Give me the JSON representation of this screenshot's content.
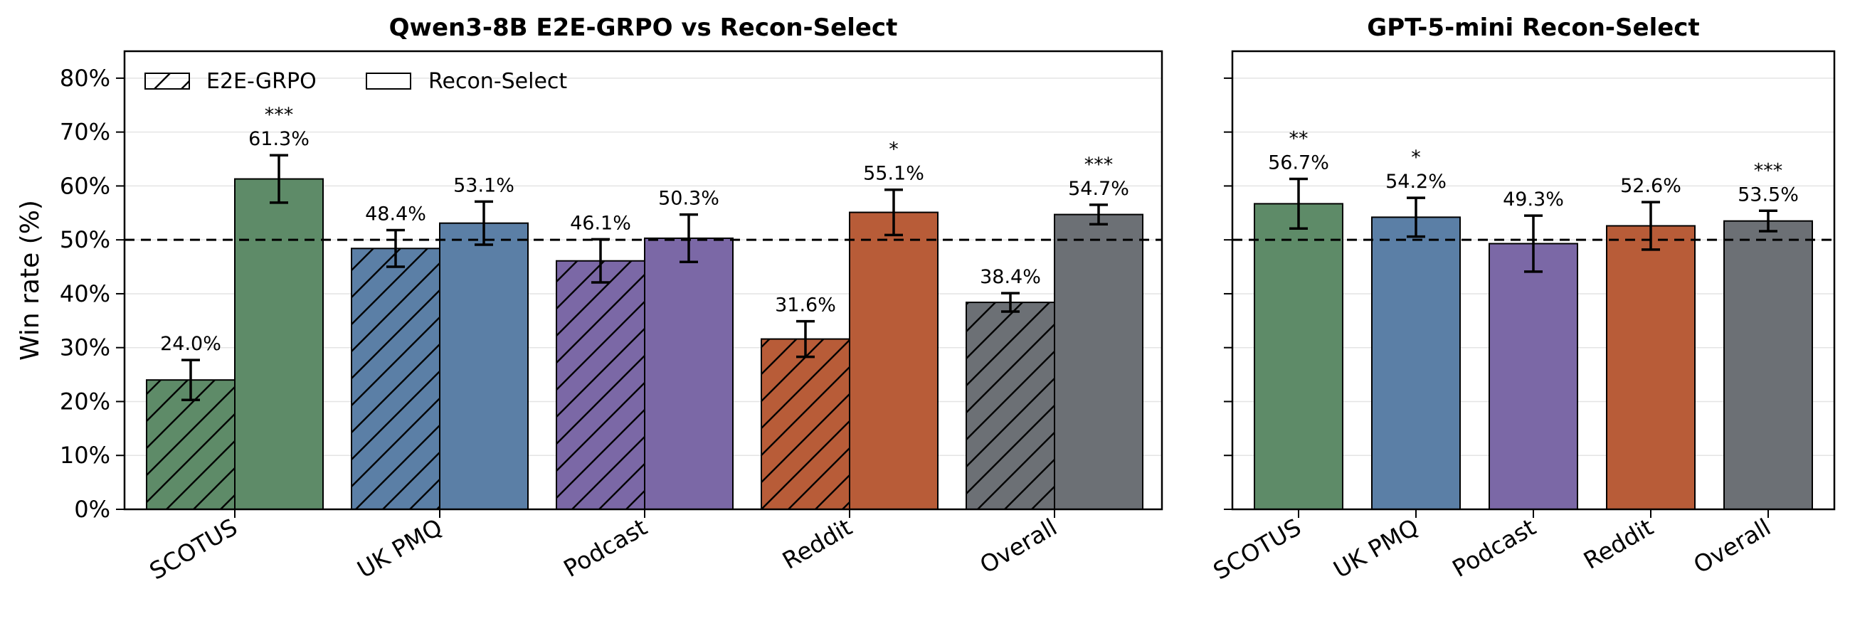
{
  "chart_data": [
    {
      "type": "bar",
      "title": "Qwen3-8B E2E-GRPO vs Recon-Select",
      "ylabel": "Win rate (%)",
      "ylim": [
        0,
        85
      ],
      "yticks": [
        "0%",
        "10%",
        "20%",
        "30%",
        "40%",
        "50%",
        "60%",
        "70%",
        "80%"
      ],
      "grid": "horizontal",
      "reference_line": 50,
      "legend_position": "top-left",
      "categories": [
        "SCOTUS",
        "UK PMQ",
        "Podcast",
        "Reddit",
        "Overall"
      ],
      "category_colors": [
        "#5e8b68",
        "#5b7fa6",
        "#7b68a6",
        "#b85c38",
        "#6c7075"
      ],
      "series": [
        {
          "name": "E2E-GRPO",
          "pattern": "hatched",
          "values": [
            24.0,
            48.4,
            46.1,
            31.6,
            38.4
          ],
          "errors": [
            3.7,
            3.4,
            4.0,
            3.3,
            1.7
          ],
          "labels": [
            "24.0%",
            "48.4%",
            "46.1%",
            "31.6%",
            "38.4%"
          ],
          "significance": [
            "",
            "",
            "",
            "",
            ""
          ]
        },
        {
          "name": "Recon-Select",
          "pattern": "solid",
          "values": [
            61.3,
            53.1,
            50.3,
            55.1,
            54.7
          ],
          "errors": [
            4.4,
            4.0,
            4.4,
            4.2,
            1.8
          ],
          "labels": [
            "61.3%",
            "53.1%",
            "50.3%",
            "55.1%",
            "54.7%"
          ],
          "significance": [
            "***",
            "",
            "",
            "*",
            "***"
          ]
        }
      ]
    },
    {
      "type": "bar",
      "title": "GPT-5-mini Recon-Select",
      "ylim": [
        0,
        85
      ],
      "reference_line": 50,
      "grid": "horizontal",
      "categories": [
        "SCOTUS",
        "UK PMQ",
        "Podcast",
        "Reddit",
        "Overall"
      ],
      "category_colors": [
        "#5e8b68",
        "#5b7fa6",
        "#7b68a6",
        "#b85c38",
        "#6c7075"
      ],
      "series": [
        {
          "values": [
            56.7,
            54.2,
            49.3,
            52.6,
            53.5
          ],
          "errors": [
            4.6,
            3.6,
            5.2,
            4.4,
            1.9
          ],
          "labels": [
            "56.7%",
            "54.2%",
            "49.3%",
            "52.6%",
            "53.5%"
          ],
          "significance": [
            "**",
            "*",
            "",
            "",
            "***"
          ]
        }
      ]
    }
  ]
}
